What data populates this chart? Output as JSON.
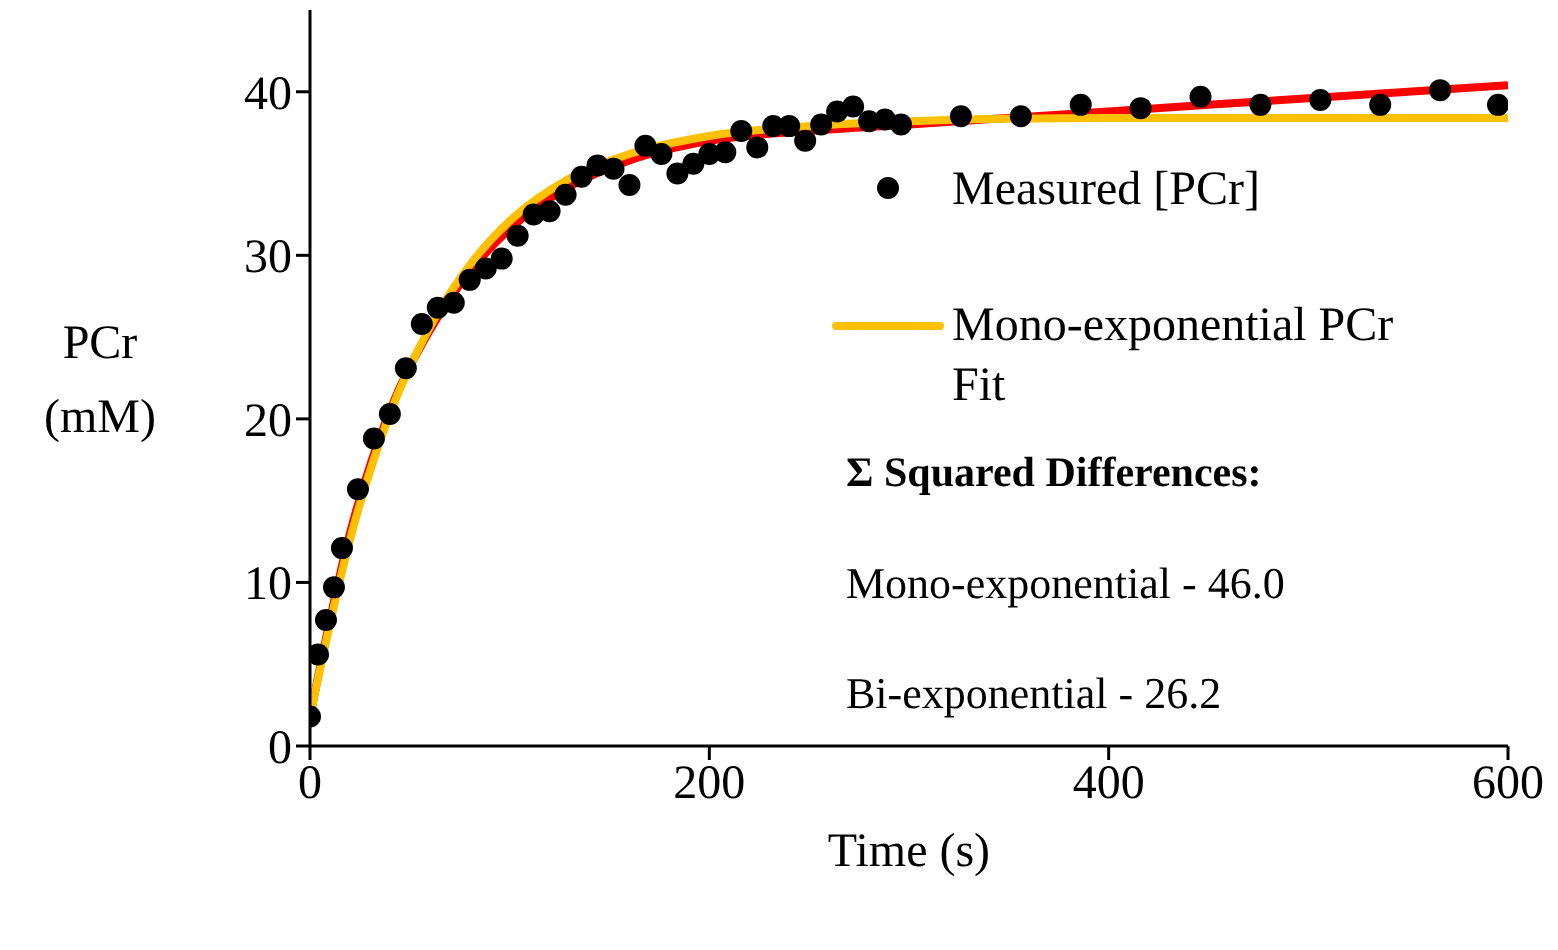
{
  "chart_data": {
    "type": "scatter",
    "xlabel": "Time (s)",
    "ylabel": "PCr (mM)",
    "xlim": [
      0,
      600
    ],
    "xticks": [
      0,
      200,
      400,
      600
    ],
    "ylim": [
      0,
      45
    ],
    "yticks": [
      0,
      10,
      20,
      30,
      40
    ],
    "grid": false,
    "legend": "right",
    "annotations": [
      "Σ Squared Differences:",
      "Mono-exponential - 46.0",
      "Bi-exponential - 26.2"
    ],
    "series": [
      {
        "type": "line",
        "color": "#ff0000",
        "marker": "none",
        "x": [
          0,
          20,
          40,
          60,
          80,
          100,
          130,
          160,
          200,
          250,
          300,
          400,
          500,
          600
        ],
        "values": [
          1.8,
          13.0,
          20.5,
          25.4,
          29.0,
          31.6,
          34.2,
          35.8,
          37.0,
          37.6,
          38.0,
          38.8,
          39.6,
          40.4
        ]
      },
      {
        "type": "line",
        "name": "Mono-exponential PCr Fit",
        "color": "#ffc000",
        "marker": "none",
        "x": [
          0,
          20,
          40,
          60,
          80,
          100,
          130,
          160,
          200,
          250,
          300,
          400,
          500,
          600
        ],
        "values": [
          1.8,
          12.6,
          20.3,
          25.6,
          29.4,
          32.1,
          34.7,
          36.2,
          37.3,
          37.9,
          38.2,
          38.4,
          38.4,
          38.4
        ]
      },
      {
        "name": "Measured [PCr]",
        "color": "#000000",
        "marker": "circle",
        "x": [
          0,
          4,
          8,
          12,
          16,
          24,
          32,
          40,
          48,
          56,
          64,
          72,
          80,
          88,
          96,
          104,
          112,
          120,
          128,
          136,
          144,
          152,
          160,
          168,
          176,
          184,
          192,
          200,
          208,
          216,
          224,
          232,
          240,
          248,
          256,
          264,
          272,
          280,
          288,
          296,
          326,
          356,
          386,
          416,
          446,
          476,
          506,
          536,
          566,
          595
        ],
        "values": [
          1.8,
          5.6,
          7.7,
          9.7,
          12.1,
          15.7,
          18.8,
          20.3,
          23.1,
          25.8,
          26.8,
          27.1,
          28.5,
          29.2,
          29.8,
          31.2,
          32.5,
          32.7,
          33.7,
          34.8,
          35.5,
          35.3,
          34.3,
          36.7,
          36.2,
          35.0,
          35.6,
          36.2,
          36.3,
          37.6,
          36.6,
          37.9,
          37.9,
          37.0,
          38.0,
          38.8,
          39.1,
          38.2,
          38.3,
          38.0,
          38.5,
          38.5,
          39.2,
          39.0,
          39.7,
          39.2,
          39.5,
          39.2,
          40.1,
          39.2
        ]
      }
    ]
  }
}
